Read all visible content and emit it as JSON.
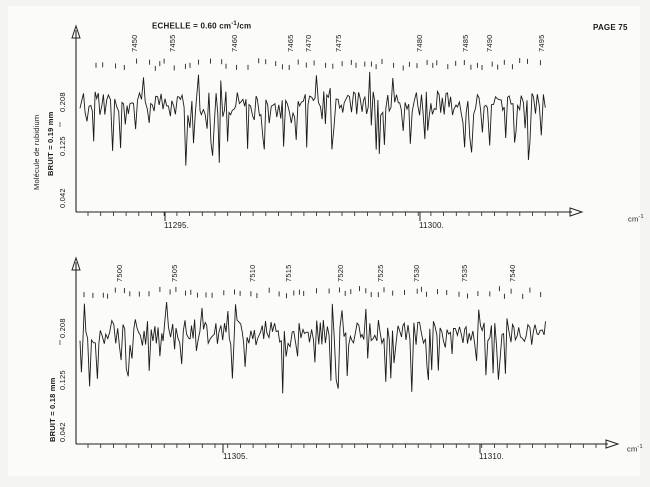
{
  "header": {
    "scale_label": "ECHELLE = 0.60 cm",
    "scale_exp": "-1",
    "scale_unit": "/cm",
    "page_label": "PAGE 75"
  },
  "side_label": "Molécule de rubidium",
  "charts": [
    {
      "noise_label": "BRUIT = 0.19 mm",
      "y_ticks": [
        "0.042",
        "0.125",
        "0.208"
      ],
      "y_symbol": "I",
      "x_unit": "cm",
      "x_unit_exp": "-1",
      "x_labels": [
        "11295.",
        "11300."
      ],
      "line_labels": [
        "7450",
        "7455",
        "7460",
        "7465",
        "7470",
        "7475",
        "7480",
        "7485",
        "7490",
        "7495"
      ]
    },
    {
      "noise_label": "BRUIT = 0.18 mm",
      "y_ticks": [
        "0.042",
        "0.125",
        "0.208"
      ],
      "y_symbol": "I",
      "x_unit": "cm",
      "x_unit_exp": "-1",
      "x_labels": [
        "11305.",
        "11310."
      ],
      "line_labels": [
        "7500",
        "7505",
        "7510",
        "7515",
        "7520",
        "7525",
        "7530",
        "7535",
        "7540"
      ]
    }
  ],
  "chart_data": [
    {
      "type": "line",
      "title": "",
      "xlabel": "cm-1",
      "ylabel": "I",
      "x_tick_labels": [
        "11295.",
        "11300."
      ],
      "y_tick_labels": [
        "0.042",
        "0.125",
        "0.208"
      ],
      "annotations": [
        "7450",
        "7455",
        "7460",
        "7465",
        "7470",
        "7475",
        "7480",
        "7485",
        "7490",
        "7495"
      ]
    },
    {
      "type": "line",
      "title": "",
      "xlabel": "cm-1",
      "ylabel": "I",
      "x_tick_labels": [
        "11305.",
        "11310."
      ],
      "y_tick_labels": [
        "0.042",
        "0.125",
        "0.208"
      ],
      "annotations": [
        "7500",
        "7505",
        "7510",
        "7515",
        "7520",
        "7525",
        "7530",
        "7535",
        "7540"
      ]
    }
  ]
}
